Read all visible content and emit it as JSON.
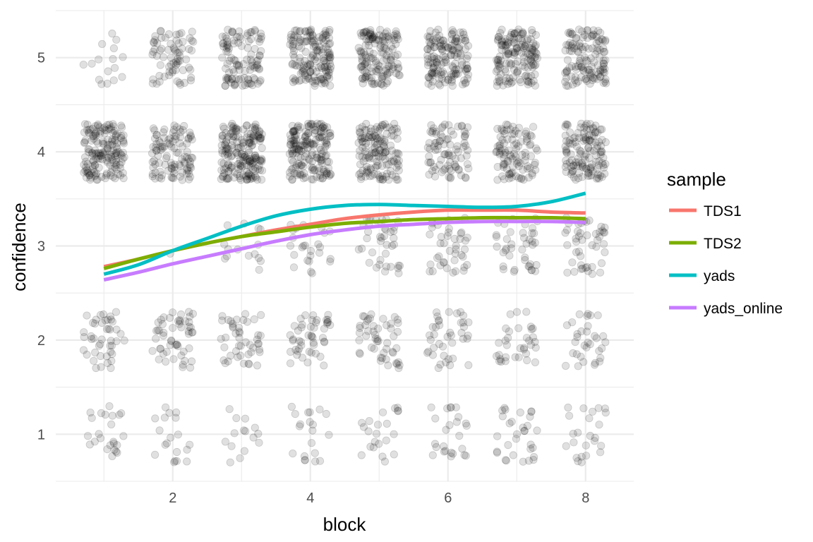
{
  "chart_data": {
    "type": "scatter",
    "xlabel": "block",
    "ylabel": "confidence",
    "xlim": [
      0.3,
      8.7
    ],
    "ylim": [
      0.5,
      5.5
    ],
    "x_ticks": [
      2,
      4,
      6,
      8
    ],
    "y_ticks": [
      1,
      2,
      3,
      4,
      5
    ],
    "grid": true,
    "legend_position": "right",
    "legend_title": "sample",
    "point_color": "#000000",
    "point_opacity": 0.12,
    "jitter": 0.3,
    "point_counts": {
      "1": [
        24,
        44,
        0,
        163,
        16
      ],
      "2": [
        19,
        53,
        1,
        105,
        70
      ],
      "3": [
        15,
        46,
        15,
        185,
        106
      ],
      "4": [
        20,
        48,
        25,
        177,
        155
      ],
      "5": [
        22,
        50,
        40,
        142,
        142
      ],
      "6": [
        25,
        40,
        42,
        85,
        147
      ],
      "7": [
        31,
        34,
        41,
        100,
        150
      ],
      "8": [
        24,
        33,
        46,
        130,
        126
      ]
    },
    "x": [
      1,
      2,
      3,
      4,
      5,
      6,
      7,
      8
    ],
    "series": [
      {
        "name": "TDS1",
        "color": "#F8766D",
        "x": [
          1,
          1.5,
          2,
          2.5,
          3,
          3.5,
          4,
          4.5,
          5,
          5.5,
          6,
          6.5,
          7,
          7.5,
          8
        ],
        "values": [
          2.78,
          2.86,
          2.95,
          3.03,
          3.1,
          3.17,
          3.23,
          3.29,
          3.33,
          3.36,
          3.38,
          3.38,
          3.38,
          3.36,
          3.35
        ]
      },
      {
        "name": "TDS2",
        "color": "#7CAE00",
        "x": [
          1,
          1.5,
          2,
          2.5,
          3,
          3.5,
          4,
          4.5,
          5,
          5.5,
          6,
          6.5,
          7,
          7.5,
          8
        ],
        "values": [
          2.76,
          2.86,
          2.95,
          3.03,
          3.1,
          3.15,
          3.2,
          3.24,
          3.26,
          3.28,
          3.29,
          3.3,
          3.3,
          3.3,
          3.29
        ]
      },
      {
        "name": "yads",
        "color": "#00BFC4",
        "x": [
          1,
          1.5,
          2,
          2.5,
          3,
          3.5,
          4,
          4.5,
          5,
          5.5,
          6,
          6.5,
          7,
          7.5,
          8
        ],
        "values": [
          2.7,
          2.8,
          2.95,
          3.08,
          3.21,
          3.32,
          3.39,
          3.43,
          3.44,
          3.43,
          3.42,
          3.41,
          3.42,
          3.47,
          3.56
        ]
      },
      {
        "name": "yads_online",
        "color": "#C77CFF",
        "x": [
          1,
          1.5,
          2,
          2.5,
          3,
          3.5,
          4,
          4.5,
          5,
          5.5,
          6,
          6.5,
          7,
          7.5,
          8
        ],
        "values": [
          2.64,
          2.72,
          2.81,
          2.89,
          2.97,
          3.05,
          3.12,
          3.17,
          3.21,
          3.23,
          3.25,
          3.26,
          3.26,
          3.26,
          3.25
        ]
      }
    ]
  }
}
